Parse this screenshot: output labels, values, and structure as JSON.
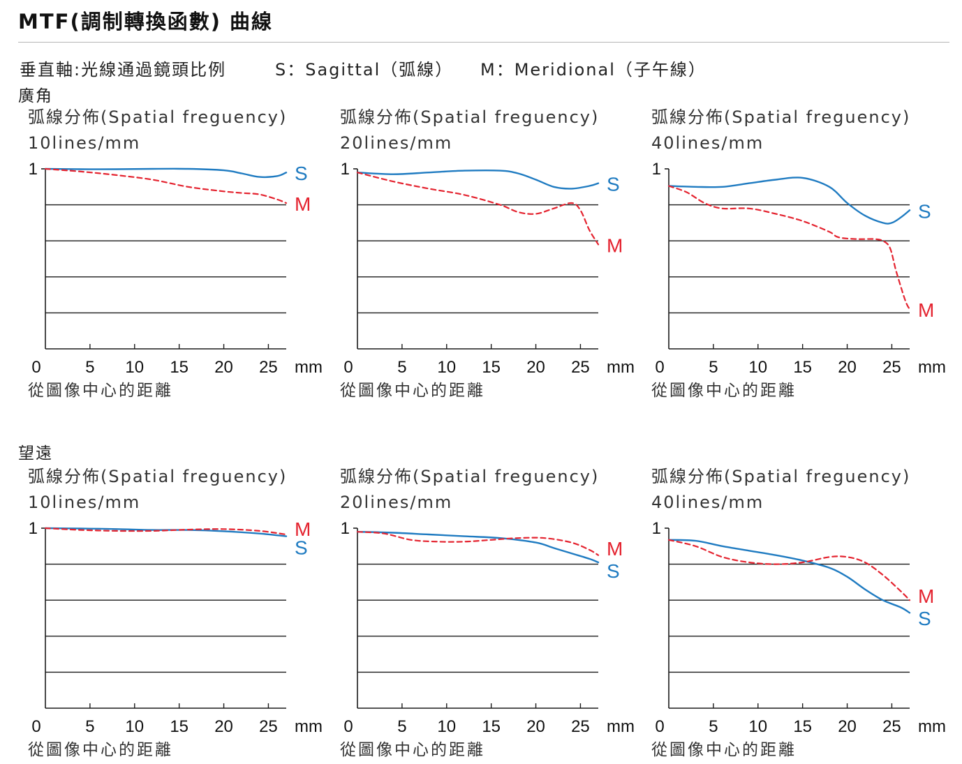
{
  "title": "MTF(調制轉換函數) 曲線",
  "legend": {
    "axis_note": "垂直軸:光線通過鏡頭比例",
    "s_note": "S：Sagittal（弧線）",
    "m_note": "M：Meridional（子午線）"
  },
  "colors": {
    "sagittal": "#1f7bc1",
    "meridional": "#e4232f",
    "grid": "#1a1a1a"
  },
  "sections": [
    {
      "label": "廣角"
    },
    {
      "label": "望遠"
    }
  ],
  "chart_data": [
    {
      "type": "line",
      "group": "廣角",
      "title_line1": "弧線分佈(Spatial freguency)",
      "title_line2": "10lines/mm",
      "xlabel": "從圖像中心的距離",
      "x_ticks": [
        "0",
        "5",
        "10",
        "15",
        "20",
        "25"
      ],
      "x_unit": "mm",
      "y_tick": "1",
      "xlim": [
        0,
        27
      ],
      "ylim": [
        0,
        1
      ],
      "series": [
        {
          "name": "S",
          "x": [
            0,
            4,
            8,
            12,
            16,
            20,
            22,
            24,
            26,
            27
          ],
          "values": [
            1.0,
            0.998,
            0.998,
            1.0,
            1.0,
            0.992,
            0.975,
            0.955,
            0.96,
            0.98
          ]
        },
        {
          "name": "M",
          "x": [
            0,
            4,
            8,
            12,
            16,
            20,
            22,
            24,
            26,
            27
          ],
          "values": [
            1.0,
            0.985,
            0.965,
            0.94,
            0.9,
            0.875,
            0.866,
            0.858,
            0.83,
            0.81
          ]
        }
      ]
    },
    {
      "type": "line",
      "group": "廣角",
      "title_line1": "弧線分佈(Spatial freguency)",
      "title_line2": "20lines/mm",
      "xlabel": "從圖像中心的距離",
      "x_ticks": [
        "0",
        "5",
        "10",
        "15",
        "20",
        "25"
      ],
      "x_unit": "mm",
      "y_tick": "1",
      "xlim": [
        0,
        27
      ],
      "ylim": [
        0,
        1
      ],
      "series": [
        {
          "name": "S",
          "x": [
            0,
            4,
            8,
            12,
            16,
            18,
            20,
            22,
            24,
            26,
            27
          ],
          "values": [
            0.98,
            0.97,
            0.98,
            0.99,
            0.99,
            0.975,
            0.94,
            0.9,
            0.89,
            0.905,
            0.92
          ]
        },
        {
          "name": "M",
          "x": [
            0,
            4,
            8,
            12,
            16,
            18,
            20,
            22,
            24,
            25,
            26,
            27
          ],
          "values": [
            0.98,
            0.93,
            0.89,
            0.855,
            0.8,
            0.76,
            0.75,
            0.78,
            0.81,
            0.77,
            0.66,
            0.58
          ]
        }
      ]
    },
    {
      "type": "line",
      "group": "廣角",
      "title_line1": "弧線分佈(Spatial freguency)",
      "title_line2": "40lines/mm",
      "xlabel": "從圖像中心的距離",
      "x_ticks": [
        "0",
        "5",
        "10",
        "15",
        "20",
        "25"
      ],
      "x_unit": "mm",
      "y_tick": "1",
      "xlim": [
        0,
        27
      ],
      "ylim": [
        0,
        1
      ],
      "series": [
        {
          "name": "S",
          "x": [
            0,
            3,
            6,
            9,
            12,
            15,
            18,
            20,
            22,
            24,
            25,
            26,
            27
          ],
          "values": [
            0.905,
            0.9,
            0.9,
            0.92,
            0.94,
            0.95,
            0.9,
            0.81,
            0.74,
            0.7,
            0.7,
            0.73,
            0.77
          ]
        },
        {
          "name": "M",
          "x": [
            0,
            2,
            4,
            6,
            9,
            12,
            15,
            18,
            19,
            21,
            23,
            24,
            24.8,
            25.5,
            26.5,
            27
          ],
          "values": [
            0.905,
            0.87,
            0.81,
            0.78,
            0.78,
            0.75,
            0.71,
            0.65,
            0.62,
            0.61,
            0.61,
            0.6,
            0.56,
            0.43,
            0.27,
            0.22
          ]
        }
      ]
    },
    {
      "type": "line",
      "group": "望遠",
      "title_line1": "弧線分佈(Spatial freguency)",
      "title_line2": "10lines/mm",
      "xlabel": "從圖像中心的距離",
      "x_ticks": [
        "0",
        "5",
        "10",
        "15",
        "20",
        "25"
      ],
      "x_unit": "mm",
      "y_tick": "1",
      "xlim": [
        0,
        27
      ],
      "ylim": [
        0,
        1
      ],
      "series": [
        {
          "name": "S",
          "x": [
            0,
            4,
            8,
            12,
            16,
            20,
            24,
            27
          ],
          "values": [
            1.0,
            0.998,
            0.995,
            0.99,
            0.99,
            0.983,
            0.97,
            0.955
          ]
        },
        {
          "name": "M",
          "x": [
            0,
            4,
            8,
            12,
            16,
            20,
            24,
            27
          ],
          "values": [
            1.0,
            0.99,
            0.985,
            0.985,
            0.992,
            0.995,
            0.985,
            0.965
          ]
        }
      ]
    },
    {
      "type": "line",
      "group": "望遠",
      "title_line1": "弧線分佈(Spatial freguency)",
      "title_line2": "20lines/mm",
      "xlabel": "從圖像中心的距離",
      "x_ticks": [
        "0",
        "5",
        "10",
        "15",
        "20",
        "25"
      ],
      "x_unit": "mm",
      "y_tick": "1",
      "xlim": [
        0,
        27
      ],
      "ylim": [
        0,
        1
      ],
      "series": [
        {
          "name": "S",
          "x": [
            0,
            4,
            8,
            12,
            16,
            20,
            22,
            24,
            26,
            27
          ],
          "values": [
            0.98,
            0.975,
            0.965,
            0.955,
            0.945,
            0.92,
            0.89,
            0.86,
            0.83,
            0.81
          ]
        },
        {
          "name": "M",
          "x": [
            0,
            3,
            6,
            9,
            12,
            15,
            18,
            21,
            24,
            26,
            27
          ],
          "values": [
            0.98,
            0.97,
            0.935,
            0.925,
            0.925,
            0.935,
            0.945,
            0.945,
            0.92,
            0.88,
            0.85
          ]
        }
      ]
    },
    {
      "type": "line",
      "group": "望遠",
      "title_line1": "弧線分佈(Spatial freguency)",
      "title_line2": "40lines/mm",
      "xlabel": "從圖像中心的距離",
      "x_ticks": [
        "0",
        "5",
        "10",
        "15",
        "20",
        "25"
      ],
      "x_unit": "mm",
      "y_tick": "1",
      "xlim": [
        0,
        27
      ],
      "ylim": [
        0,
        1
      ],
      "series": [
        {
          "name": "S",
          "x": [
            0,
            3,
            6,
            9,
            12,
            15,
            18,
            20,
            22,
            24,
            26,
            27
          ],
          "values": [
            0.935,
            0.93,
            0.9,
            0.875,
            0.85,
            0.82,
            0.78,
            0.73,
            0.66,
            0.6,
            0.56,
            0.53
          ]
        },
        {
          "name": "M",
          "x": [
            0,
            3,
            6,
            9,
            12,
            15,
            18,
            20,
            22,
            24,
            26,
            27
          ],
          "values": [
            0.935,
            0.9,
            0.84,
            0.81,
            0.8,
            0.81,
            0.84,
            0.84,
            0.81,
            0.74,
            0.65,
            0.6
          ]
        }
      ]
    }
  ]
}
